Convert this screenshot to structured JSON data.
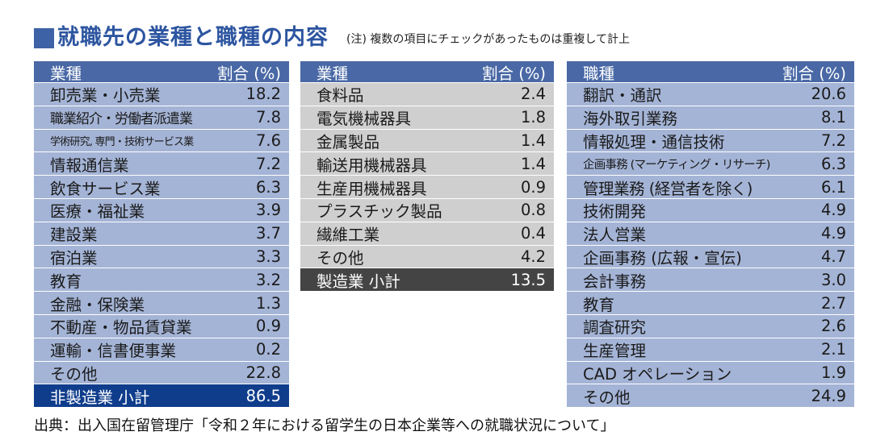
{
  "title": "就職先の業種と職種の内容",
  "note": "(注) 複数の項目にチェックがあったものは重複して計上",
  "table1": {
    "header_label": "業種",
    "header_value": "割合 (%)",
    "rows": [
      {
        "label": "卸売業・小売業",
        "value": "18.2"
      },
      {
        "label": "職業紹介・労働者派遣業",
        "value": "7.8"
      },
      {
        "label": "学術研究, 専門・技術サービス業",
        "value": "7.6"
      },
      {
        "label": "情報通信業",
        "value": "7.2"
      },
      {
        "label": "飲食サービス業",
        "value": "6.3"
      },
      {
        "label": "医療・福祉業",
        "value": "3.9"
      },
      {
        "label": "建設業",
        "value": "3.7"
      },
      {
        "label": "宿泊業",
        "value": "3.3"
      },
      {
        "label": "教育",
        "value": "3.2"
      },
      {
        "label": "金融・保険業",
        "value": "1.3"
      },
      {
        "label": "不動産・物品賃貸業",
        "value": "0.9"
      },
      {
        "label": "運輸・信書便事業",
        "value": "0.2"
      },
      {
        "label": "その他",
        "value": "22.8"
      }
    ],
    "subtotal": {
      "label": "非製造業 小計",
      "value": "86.5"
    }
  },
  "table2": {
    "header_label": "業種",
    "header_value": "割合 (%)",
    "rows": [
      {
        "label": "食料品",
        "value": "2.4"
      },
      {
        "label": "電気機械器具",
        "value": "1.8"
      },
      {
        "label": "金属製品",
        "value": "1.4"
      },
      {
        "label": "輸送用機械器具",
        "value": "1.4"
      },
      {
        "label": "生産用機械器具",
        "value": "0.9"
      },
      {
        "label": "プラスチック製品",
        "value": "0.8"
      },
      {
        "label": "繊維工業",
        "value": "0.4"
      },
      {
        "label": "その他",
        "value": "4.2"
      }
    ],
    "subtotal": {
      "label": "製造業 小計",
      "value": "13.5"
    }
  },
  "table3": {
    "header_label": "職種",
    "header_value": "割合 (%)",
    "rows": [
      {
        "label": "翻訳・通訳",
        "value": "20.6"
      },
      {
        "label": "海外取引業務",
        "value": "8.1"
      },
      {
        "label": "情報処理・通信技術",
        "value": "7.2"
      },
      {
        "label": "企画事務 (マーケティング・リサーチ)",
        "value": "6.3"
      },
      {
        "label": "管理業務 (経営者を除く)",
        "value": "6.1"
      },
      {
        "label": "技術開発",
        "value": "4.9"
      },
      {
        "label": "法人営業",
        "value": "4.9"
      },
      {
        "label": "企画事務 (広報・宣伝)",
        "value": "4.7"
      },
      {
        "label": "会計事務",
        "value": "3.0"
      },
      {
        "label": "教育",
        "value": "2.7"
      },
      {
        "label": "調査研究",
        "value": "2.6"
      },
      {
        "label": "生産管理",
        "value": "2.1"
      },
      {
        "label": "CAD オペレーション",
        "value": "1.9"
      },
      {
        "label": "その他",
        "value": "24.9"
      }
    ]
  },
  "source": "出典：出入国在留管理庁「令和２年における留学生の日本企業等への就職状況について」",
  "colors": {
    "title": "#2d55a0",
    "header_bg": "#4968a5",
    "row_blue": "#a4b4d6",
    "row_gray": "#cfcfcf",
    "subtotal_blue": "#0f3d8c",
    "subtotal_dark": "#444444"
  }
}
